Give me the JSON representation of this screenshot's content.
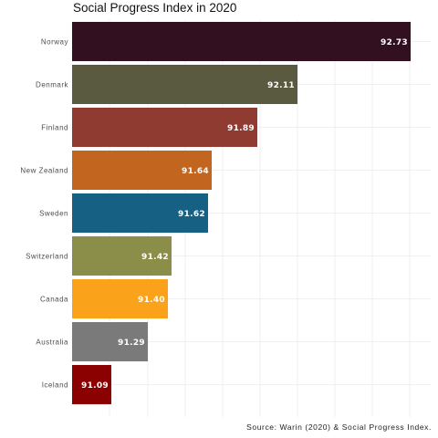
{
  "chart_data": {
    "type": "bar",
    "orientation": "horizontal",
    "title": "Social Progress Index in 2020",
    "caption": "Source: Warin (2020) & Social Progress Index.",
    "xlabel": "",
    "ylabel": "",
    "grid": true,
    "legend": "none",
    "categories": [
      "Norway",
      "Denmark",
      "Finland",
      "New Zealand",
      "Sweden",
      "Switzerland",
      "Canada",
      "Australia",
      "Iceland"
    ],
    "values": [
      92.73,
      92.11,
      91.89,
      91.64,
      91.62,
      91.42,
      91.4,
      91.29,
      91.09
    ],
    "value_labels": [
      "92.73",
      "92.11",
      "91.89",
      "91.64",
      "91.62",
      "91.42",
      "91.40",
      "91.29",
      "91.09"
    ],
    "colors": [
      "#33101f",
      "#5a5a40",
      "#8f3b31",
      "#c2661f",
      "#166084",
      "#8b8e48",
      "#fba21b",
      "#7a7a7a",
      "#8b0000"
    ]
  }
}
